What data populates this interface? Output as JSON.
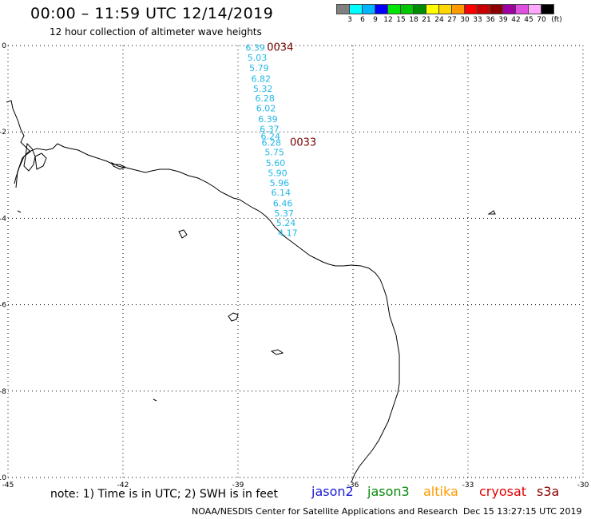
{
  "header": {
    "title": "00:00 – 11:59 UTC 12/14/2019",
    "subtitle": "12 hour collection of altimeter wave heights"
  },
  "legend": {
    "unit": "(ft)",
    "bins": [
      {
        "label": "3",
        "color": "#808080"
      },
      {
        "label": "6",
        "color": "#00ffff"
      },
      {
        "label": "9",
        "color": "#00b4ff"
      },
      {
        "label": "12",
        "color": "#0000ff"
      },
      {
        "label": "15",
        "color": "#00e600"
      },
      {
        "label": "18",
        "color": "#00c800"
      },
      {
        "label": "21",
        "color": "#008c00"
      },
      {
        "label": "24",
        "color": "#ffff00"
      },
      {
        "label": "27",
        "color": "#ffd700"
      },
      {
        "label": "30",
        "color": "#ff9b00"
      },
      {
        "label": "33",
        "color": "#ff0000"
      },
      {
        "label": "36",
        "color": "#c80000"
      },
      {
        "label": "39",
        "color": "#8c0000"
      },
      {
        "label": "42",
        "color": "#a000a0"
      },
      {
        "label": "45",
        "color": "#e050e0"
      },
      {
        "label": "70",
        "color": "#ffaaff"
      },
      {
        "label": "",
        "color": "#000000"
      }
    ]
  },
  "map": {
    "lon_range": [
      -45,
      -30
    ],
    "lat_range": [
      -10,
      0
    ],
    "x_ticks": [
      "-45",
      "-42",
      "-39",
      "-36",
      "-33",
      "-30"
    ],
    "y_ticks": [
      "0",
      "-2",
      "-4",
      "-6",
      "-8",
      "-10"
    ],
    "track_color": "#22b8e6",
    "time_color": "#7a0000",
    "observations": [
      {
        "lon": -38.55,
        "lat": -0.05,
        "swh": "6.39"
      },
      {
        "lon": -38.5,
        "lat": -0.28,
        "swh": "5.03"
      },
      {
        "lon": -38.45,
        "lat": -0.52,
        "swh": "5.79"
      },
      {
        "lon": -38.4,
        "lat": -0.77,
        "swh": "6.82"
      },
      {
        "lon": -38.35,
        "lat": -1.0,
        "swh": "5.32"
      },
      {
        "lon": -38.3,
        "lat": -1.22,
        "swh": "6.28"
      },
      {
        "lon": -38.27,
        "lat": -1.45,
        "swh": "6.02"
      },
      {
        "lon": -38.22,
        "lat": -1.7,
        "swh": "6.39"
      },
      {
        "lon": -38.18,
        "lat": -1.93,
        "swh": "6.37"
      },
      {
        "lon": -38.15,
        "lat": -2.1,
        "swh": "6.24"
      },
      {
        "lon": -38.13,
        "lat": -2.25,
        "swh": "6.28"
      },
      {
        "lon": -38.05,
        "lat": -2.47,
        "swh": "5.75"
      },
      {
        "lon": -38.02,
        "lat": -2.72,
        "swh": "5.60"
      },
      {
        "lon": -37.97,
        "lat": -2.95,
        "swh": "5.90"
      },
      {
        "lon": -37.92,
        "lat": -3.18,
        "swh": "5.96"
      },
      {
        "lon": -37.88,
        "lat": -3.4,
        "swh": "6.14"
      },
      {
        "lon": -37.83,
        "lat": -3.65,
        "swh": "6.46"
      },
      {
        "lon": -37.8,
        "lat": -3.88,
        "swh": "5.37"
      },
      {
        "lon": -37.75,
        "lat": -4.1,
        "swh": "5.24"
      },
      {
        "lon": -37.7,
        "lat": -4.33,
        "swh": "4.17"
      }
    ],
    "time_labels": [
      {
        "lon": -37.9,
        "lat": -0.05,
        "text": "0034"
      },
      {
        "lon": -37.3,
        "lat": -2.25,
        "text": "0033"
      }
    ]
  },
  "footer": {
    "note": "note: 1) Time is in UTC; 2) SWH is in feet",
    "satellites": [
      {
        "name": "jason2",
        "color": "#1a1ad8"
      },
      {
        "name": "jason3",
        "color": "#0a8a0a"
      },
      {
        "name": "altika",
        "color": "#ff9b00"
      },
      {
        "name": "cryosat",
        "color": "#e00000"
      },
      {
        "name": "s3a",
        "color": "#8c0000"
      }
    ],
    "credit": "NOAA/NESDIS Center for Satellite Applications and Research",
    "timestamp": "Dec 15 13:27:15 UTC 2019"
  }
}
